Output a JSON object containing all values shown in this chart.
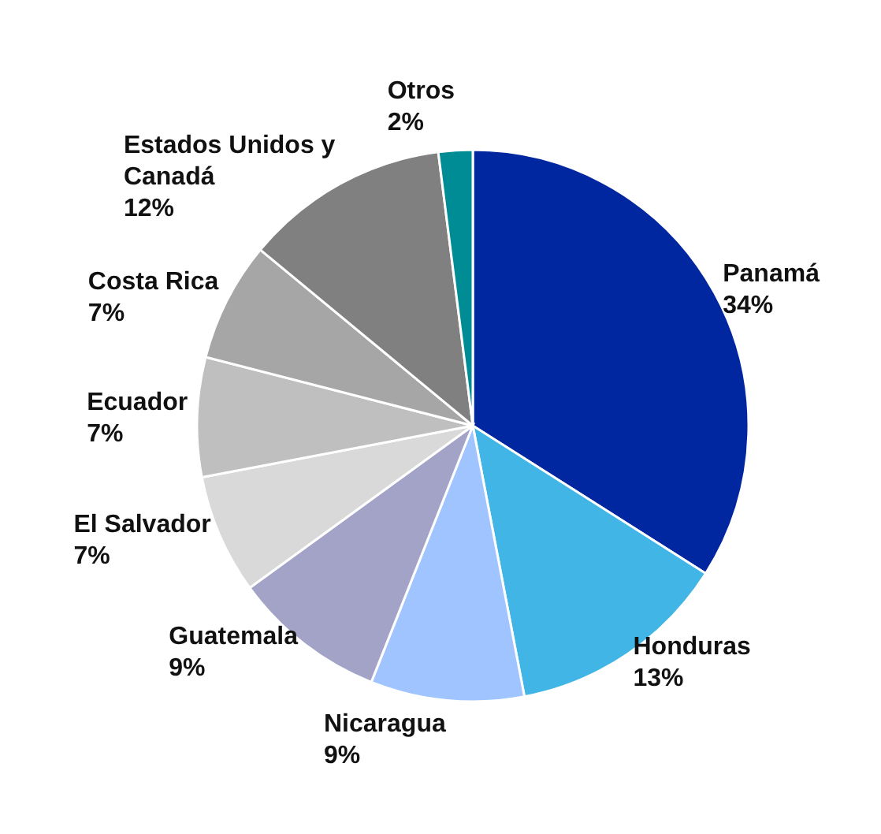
{
  "chart_data": {
    "type": "pie",
    "categories": [
      "Panamá",
      "Honduras",
      "Nicaragua",
      "Guatemala",
      "El Salvador",
      "Ecuador",
      "Costa Rica",
      "Estados Unidos y Canadá",
      "Otros"
    ],
    "values": [
      34,
      13,
      9,
      9,
      7,
      7,
      7,
      12,
      2
    ],
    "colors": [
      "#0026a0",
      "#41b6e6",
      "#a0c4ff",
      "#a3a3c8",
      "#d9d9d9",
      "#bfbfbf",
      "#a6a6a6",
      "#808080",
      "#008c95"
    ],
    "value_labels": [
      "34%",
      "13%",
      "9%",
      "9%",
      "7%",
      "7%",
      "7%",
      "12%",
      "2%"
    ],
    "legend": false
  }
}
